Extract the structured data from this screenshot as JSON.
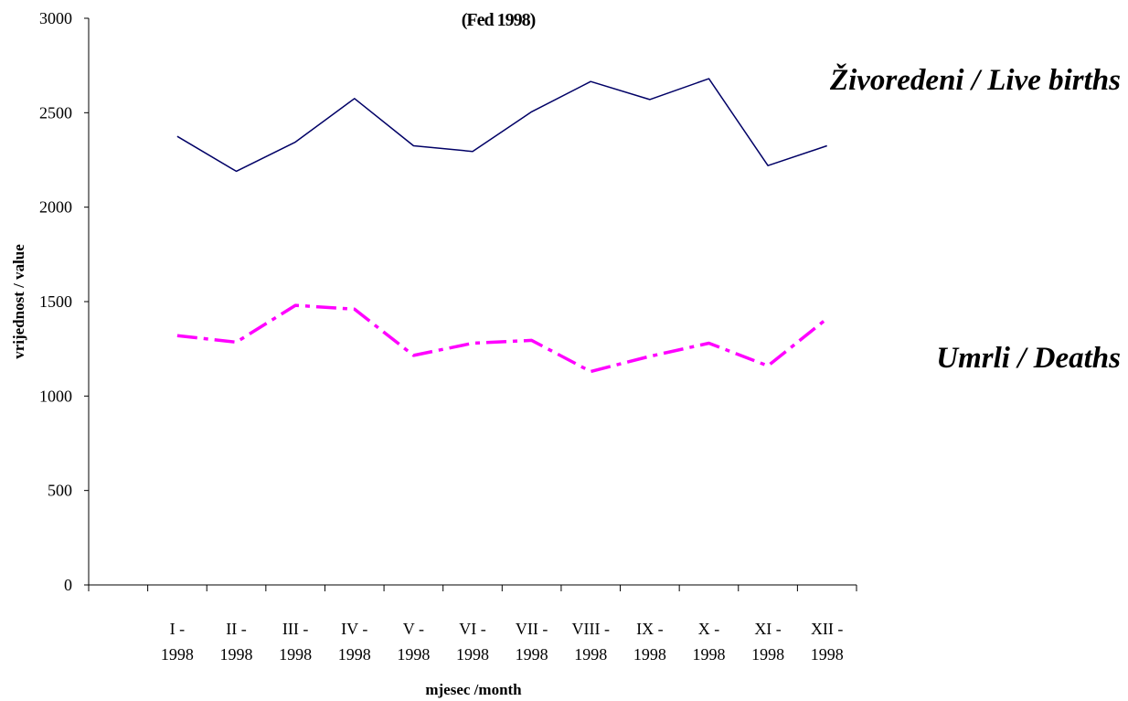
{
  "chart_data": {
    "type": "line",
    "title": "(Fed 1998)",
    "xlabel": "mjesec /month",
    "ylabel": "vrijednost / value",
    "ylim": [
      0,
      3000
    ],
    "yticks": [
      "0",
      "500",
      "1000",
      "1500",
      "2000",
      "2500",
      "3000"
    ],
    "categories": [
      [
        "I -",
        "1998"
      ],
      [
        "II -",
        "1998"
      ],
      [
        "III -",
        "1998"
      ],
      [
        "IV -",
        "1998"
      ],
      [
        "V -",
        "1998"
      ],
      [
        "VI -",
        "1998"
      ],
      [
        "VII -",
        "1998"
      ],
      [
        "VIII -",
        "1998"
      ],
      [
        "IX -",
        "1998"
      ],
      [
        "X -",
        "1998"
      ],
      [
        "XI -",
        "1998"
      ],
      [
        "XII -",
        "1998"
      ]
    ],
    "series": [
      {
        "name": "Živoredeni / Live births",
        "color": "#000066",
        "style": "solid",
        "values": [
          2375,
          2190,
          2345,
          2575,
          2325,
          2295,
          2505,
          2665,
          2570,
          2680,
          2220,
          2325
        ]
      },
      {
        "name": "Umrli / Deaths",
        "color": "#ff00ff",
        "style": "dash-dot",
        "values": [
          1320,
          1285,
          1480,
          1460,
          1215,
          1280,
          1295,
          1130,
          1210,
          1280,
          1160,
          1410
        ]
      }
    ],
    "grid": false,
    "legend": "inline-right"
  }
}
